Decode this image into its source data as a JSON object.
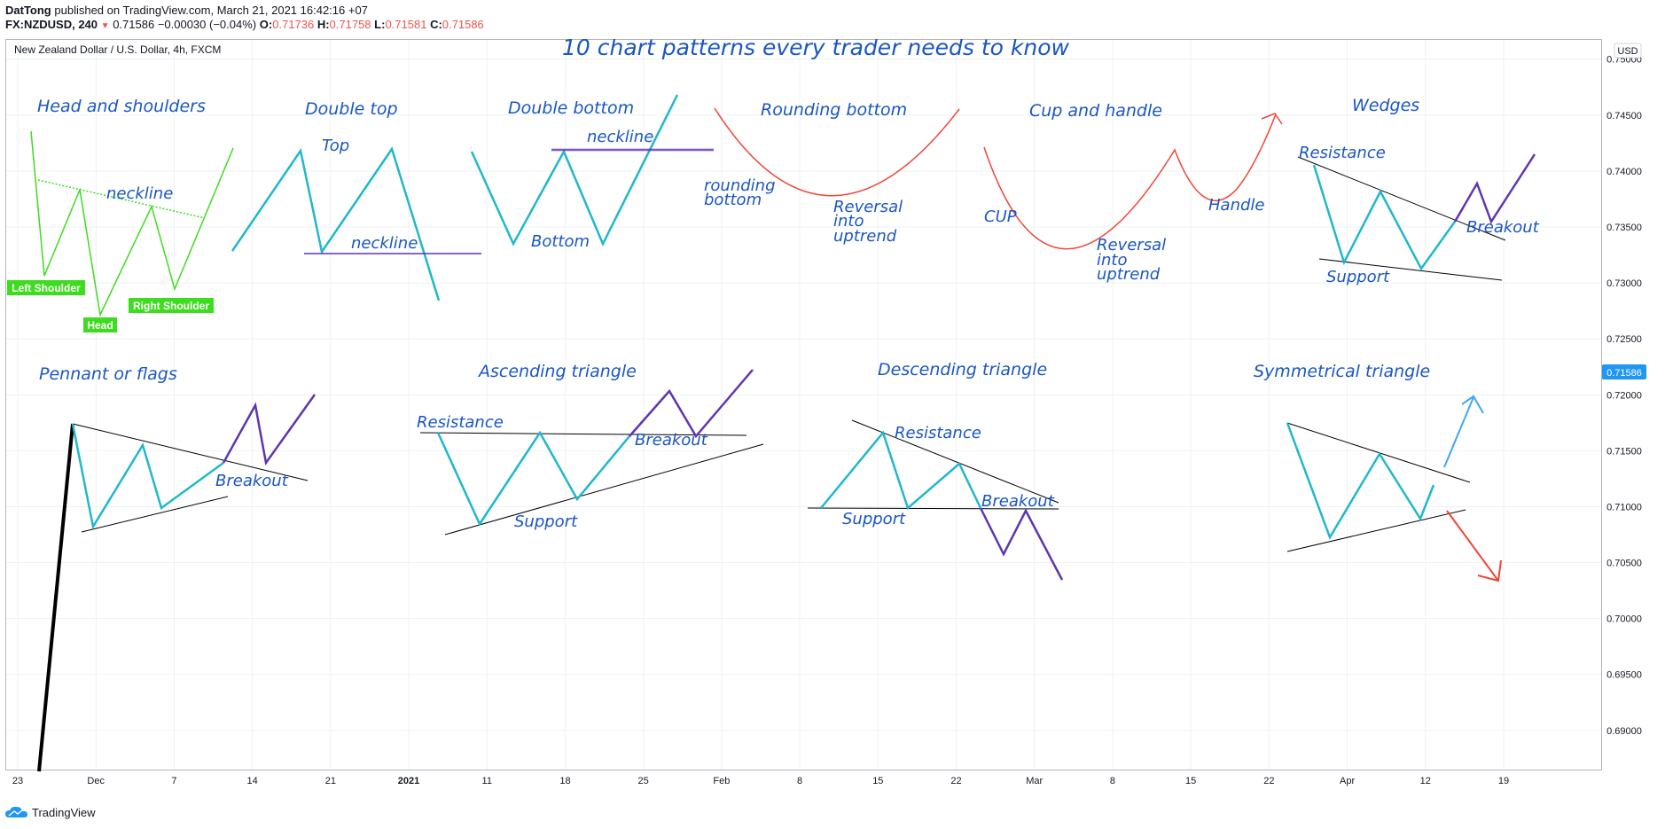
{
  "header": {
    "author": "DatTong",
    "published_text": "published on TradingView.com, March 21, 2021 16:42:16 +07",
    "symbol": "FX:NZDUSD, 240",
    "last_price": "0.71586",
    "change": "−0.00030 (−0.04%)",
    "o_label": "O:",
    "o_value": "0.71736",
    "h_label": "H:",
    "h_value": "0.71758",
    "l_label": "L:",
    "l_value": "0.71581",
    "c_label": "C:",
    "c_value": "0.71586",
    "down_arrow": "▼"
  },
  "chart_header": {
    "instrument": "New Zealand Dollar / U.S. Dollar, 4h, FXCM",
    "title": "10 chart patterns every trader needs to know",
    "currency": "USD",
    "price_tag": "0.71586"
  },
  "footer": {
    "brand": "TradingView"
  },
  "colors": {
    "teal": "#1fb8cc",
    "purple": "#5e35b1",
    "red": "#f44336",
    "green": "#3ddc1f",
    "blue_text": "#1a56c4",
    "axis": "#b2b5be",
    "grid": "#eef1f5",
    "price_tag": "#2196f3"
  },
  "chart_data": {
    "type": "line",
    "title": "10 chart patterns every trader needs to know",
    "subtitle": "New Zealand Dollar / U.S. Dollar, 4h, FXCM",
    "y_axis": {
      "ticks": [
        "0.75000",
        "0.74500",
        "0.74000",
        "0.73500",
        "0.73000",
        "0.72500",
        "0.72000",
        "0.71500",
        "0.71000",
        "0.70500",
        "0.70000",
        "0.69500",
        "0.69000"
      ],
      "range": [
        0.6865,
        0.7518
      ],
      "label": "USD"
    },
    "x_axis": {
      "ticks": [
        "23",
        "Dec",
        "7",
        "14",
        "21",
        "2021",
        "11",
        "18",
        "25",
        "Feb",
        "8",
        "15",
        "22",
        "Mar",
        "8",
        "15",
        "22",
        "Apr",
        "12",
        "19"
      ],
      "bold_ticks": [
        "2021"
      ]
    },
    "grid": true,
    "patterns": [
      {
        "name": "Head and shoulders",
        "labels": [
          "neckline"
        ],
        "badges": [
          "Left Shoulder",
          "Head",
          "Right Shoulder"
        ]
      },
      {
        "name": "Double top",
        "labels": [
          "Top",
          "neckline"
        ]
      },
      {
        "name": "Double bottom",
        "labels": [
          "neckline",
          "Bottom"
        ]
      },
      {
        "name": "Rounding bottom",
        "labels": [
          "rounding",
          "bottom",
          "Reversal",
          "into",
          "uptrend"
        ]
      },
      {
        "name": "Cup and handle",
        "labels": [
          "CUP",
          "Reversal",
          "into",
          "uptrend",
          "Handle"
        ]
      },
      {
        "name": "Wedges",
        "labels": [
          "Resistance",
          "Breakout",
          "Support"
        ]
      },
      {
        "name": "Pennant or flags",
        "labels": [
          "Breakout"
        ]
      },
      {
        "name": "Ascending triangle",
        "labels": [
          "Resistance",
          "Breakout",
          "Support"
        ]
      },
      {
        "name": "Descending triangle",
        "labels": [
          "Resistance",
          "Support",
          "Breakout"
        ]
      },
      {
        "name": "Symmetrical triangle",
        "labels": []
      }
    ]
  }
}
